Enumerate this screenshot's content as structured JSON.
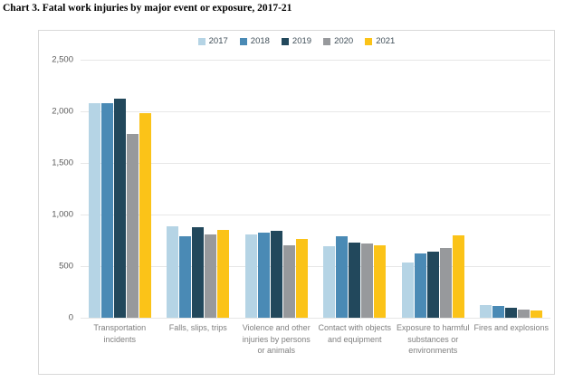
{
  "title": "Chart 3. Fatal work injuries by major event or exposure, 2017-21",
  "chart_data": {
    "type": "bar",
    "title": "Chart 3. Fatal work injuries by major event or exposure, 2017-21",
    "categories": [
      "Transportation incidents",
      "Falls, slips, trips",
      "Violence and other injuries by persons or animals",
      "Contact with objects and equipment",
      "Exposure to harmful substances or environments",
      "Fires and explosions"
    ],
    "series": [
      {
        "name": "2017",
        "color": "#b5d4e5",
        "values": [
          2077,
          887,
          807,
          695,
          531,
          123
        ]
      },
      {
        "name": "2018",
        "color": "#4a8ab5",
        "values": [
          2080,
          791,
          828,
          786,
          621,
          115
        ]
      },
      {
        "name": "2019",
        "color": "#22485c",
        "values": [
          2122,
          880,
          841,
          732,
          642,
          99
        ]
      },
      {
        "name": "2020",
        "color": "#97999c",
        "values": [
          1778,
          805,
          705,
          716,
          672,
          76
        ]
      },
      {
        "name": "2021",
        "color": "#fbc318",
        "values": [
          1982,
          850,
          761,
          705,
          798,
          72
        ]
      }
    ],
    "xlabel": "",
    "ylabel": "",
    "ylim": [
      0,
      2500
    ],
    "ytick_values": [
      0,
      500,
      1000,
      1500,
      2000,
      2500
    ],
    "ytick_labels": [
      "0",
      "500",
      "1,000",
      "1,500",
      "2,000",
      "2,500"
    ],
    "grid": true,
    "legend_position": "top-center",
    "colors": {
      "gridline": "#e7e7e7",
      "frame_border": "#d8d8d8",
      "axis_text": "#595959",
      "category_text": "#7f7f7f",
      "legend_text": "#3f4e58",
      "background": "#ffffff"
    }
  }
}
